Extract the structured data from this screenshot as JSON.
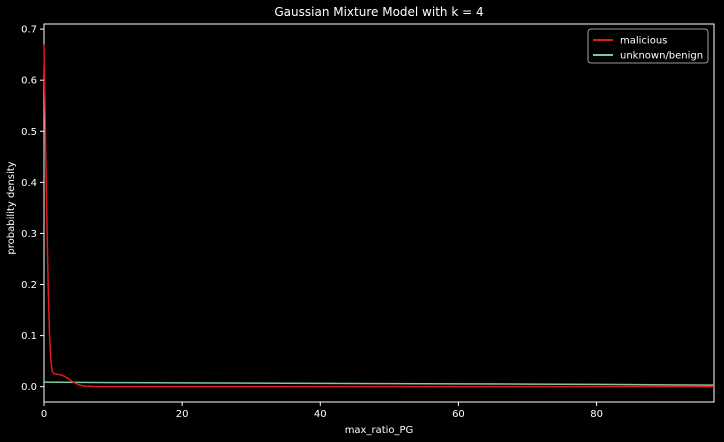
{
  "chart_data": {
    "type": "line",
    "title": "Gaussian Mixture Model with k = 4",
    "xlabel": "max_ratio_PG",
    "ylabel": "probability density",
    "xlim": [
      0,
      97
    ],
    "ylim": [
      -0.03,
      0.71
    ],
    "x_ticks": [
      0,
      20,
      40,
      60,
      80
    ],
    "y_ticks": [
      0.0,
      0.1,
      0.2,
      0.3,
      0.4,
      0.5,
      0.6,
      0.7
    ],
    "x_tick_labels": [
      "0",
      "20",
      "40",
      "60",
      "80"
    ],
    "y_tick_labels": [
      "0.0",
      "0.1",
      "0.2",
      "0.3",
      "0.4",
      "0.5",
      "0.6",
      "0.7"
    ],
    "grid": false,
    "legend_position": "top-right",
    "series": [
      {
        "name": "malicious",
        "color": "#e31a1c",
        "x": [
          0,
          0.2,
          0.4,
          0.6,
          0.8,
          1.0,
          1.2,
          1.5,
          2.0,
          2.5,
          3.0,
          3.5,
          4.0,
          4.5,
          5.0,
          5.5,
          6.0,
          7.0,
          8.0,
          10,
          15,
          20,
          30,
          40,
          50,
          60,
          70,
          80,
          90,
          97
        ],
        "y": [
          0.67,
          0.5,
          0.34,
          0.2,
          0.1,
          0.05,
          0.03,
          0.025,
          0.024,
          0.023,
          0.02,
          0.016,
          0.011,
          0.007,
          0.004,
          0.002,
          0.001,
          0.0005,
          0.0002,
          0.0001,
          0.0,
          0.0,
          0.0,
          0.0,
          0.0,
          0.0,
          0.0,
          0.0,
          0.0,
          0.0
        ]
      },
      {
        "name": "unknown/benign",
        "color": "#7fc9a4",
        "x": [
          0,
          10,
          20,
          30,
          40,
          50,
          60,
          70,
          80,
          90,
          97
        ],
        "y": [
          0.009,
          0.008,
          0.0075,
          0.007,
          0.0065,
          0.006,
          0.0055,
          0.005,
          0.0045,
          0.0035,
          0.003
        ]
      }
    ]
  }
}
